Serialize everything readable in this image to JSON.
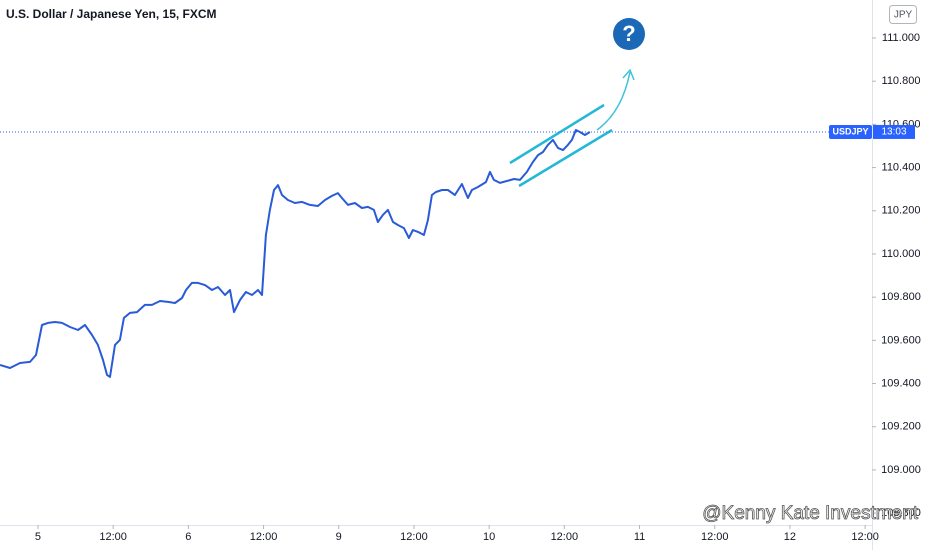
{
  "chart_data": {
    "type": "line",
    "title": "U.S. Dollar / Japanese Yen, 15, FXCM",
    "currency": "JPY",
    "annotation": "?",
    "watermark": "@Kenny Kate Investment",
    "color": "#2a5bd7",
    "x": [
      -6.06,
      -4.47,
      -2.87,
      -1.28,
      -0.32,
      0.64,
      1.6,
      2.71,
      3.83,
      5.11,
      6.38,
      7.5,
      8.62,
      9.57,
      10.37,
      11.01,
      11.49,
      12.29,
      13.08,
      13.72,
      14.68,
      15.8,
      17.07,
      18.19,
      19.47,
      20.74,
      21.86,
      22.98,
      23.62,
      24.57,
      25.53,
      26.65,
      27.77,
      28.73,
      29.84,
      30.64,
      31.28,
      32.24,
      33.19,
      34.15,
      35.11,
      35.75,
      36.38,
      37.02,
      37.66,
      38.3,
      38.94,
      39.89,
      41.01,
      42.13,
      43.4,
      44.68,
      45.8,
      46.91,
      47.87,
      48.51,
      49.47,
      50.58,
      51.7,
      52.66,
      53.61,
      54.25,
      55.05,
      55.85,
      56.65,
      57.44,
      58.4,
      59.2,
      59.84,
      60.64,
      61.59,
      62.23,
      62.87,
      63.51,
      64.47,
      65.42,
      66.54,
      67.66,
      68.61,
      69.25,
      70.21,
      71.49,
      72.13,
      72.76,
      73.72,
      74.84,
      75.96,
      76.92,
      78.03,
      78.99,
      79.79,
      80.59,
      81.38,
      82.18,
      82.98,
      83.78,
      84.57,
      85.21,
      85.85,
      86.49,
      87.28,
      88.08
    ],
    "values": [
      109.486,
      109.472,
      109.495,
      109.5,
      109.532,
      109.671,
      109.681,
      109.685,
      109.681,
      109.662,
      109.648,
      109.671,
      109.625,
      109.579,
      109.509,
      109.44,
      109.431,
      109.579,
      109.602,
      109.704,
      109.727,
      109.731,
      109.764,
      109.764,
      109.782,
      109.778,
      109.773,
      109.796,
      109.833,
      109.866,
      109.866,
      109.856,
      109.833,
      109.847,
      109.81,
      109.833,
      109.731,
      109.787,
      109.824,
      109.81,
      109.833,
      109.81,
      110.088,
      110.204,
      110.296,
      110.319,
      110.273,
      110.25,
      110.236,
      110.241,
      110.227,
      110.222,
      110.25,
      110.269,
      110.282,
      110.259,
      110.227,
      110.236,
      110.213,
      110.218,
      110.204,
      110.148,
      110.181,
      110.204,
      110.148,
      110.134,
      110.12,
      110.074,
      110.111,
      110.102,
      110.088,
      110.157,
      110.273,
      110.287,
      110.296,
      110.296,
      110.273,
      110.324,
      110.259,
      110.296,
      110.31,
      110.333,
      110.38,
      110.343,
      110.329,
      110.338,
      110.347,
      110.343,
      110.38,
      110.426,
      110.458,
      110.472,
      110.505,
      110.528,
      110.491,
      110.481,
      110.505,
      110.528,
      110.574,
      110.565,
      110.551,
      110.565
    ],
    "xlim": [
      -6.06,
      133.1
    ],
    "ylim": [
      108.745,
      111.176
    ],
    "xticks": [
      {
        "value": 0,
        "label": "5"
      },
      {
        "value": 12,
        "label": "12:00"
      },
      {
        "value": 24,
        "label": "6"
      },
      {
        "value": 36,
        "label": "12:00"
      },
      {
        "value": 48,
        "label": "9"
      },
      {
        "value": 60,
        "label": "12:00"
      },
      {
        "value": 72,
        "label": "10"
      },
      {
        "value": 84,
        "label": "12:00"
      },
      {
        "value": 96,
        "label": "11"
      },
      {
        "value": 108,
        "label": "12:00"
      },
      {
        "value": 120,
        "label": "12"
      },
      {
        "value": 132,
        "label": "12:00"
      }
    ],
    "yticks": [
      {
        "value": 108.8,
        "label": "108.800"
      },
      {
        "value": 109,
        "label": "109.000"
      },
      {
        "value": 109.2,
        "label": "109.200"
      },
      {
        "value": 109.4,
        "label": "109.400"
      },
      {
        "value": 109.6,
        "label": "109.600"
      },
      {
        "value": 109.8,
        "label": "109.800"
      },
      {
        "value": 110,
        "label": "110.000"
      },
      {
        "value": 110.2,
        "label": "110.200"
      },
      {
        "value": 110.4,
        "label": "110.400"
      },
      {
        "value": 110.6,
        "label": "110.600"
      },
      {
        "value": 110.8,
        "label": "110.800"
      },
      {
        "value": 111,
        "label": "111.000"
      }
    ],
    "last_price": {
      "symbol": "USDJPY",
      "time": "13:03",
      "value": 110.565,
      "color": "#2962ff"
    }
  }
}
